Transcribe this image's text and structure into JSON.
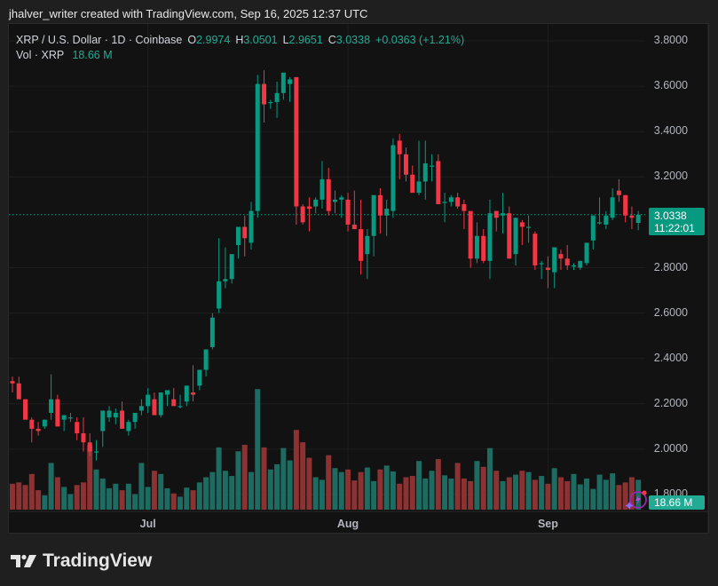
{
  "caption": "jhalver_writer created with TradingView.com, Sep 16, 2025 12:37 UTC",
  "legend": {
    "symbol_line": "XRP / U.S. Dollar · 1D · Coinbase",
    "open_label": "O",
    "open": "2.9974",
    "high_label": "H",
    "high": "3.0501",
    "low_label": "L",
    "low": "2.9651",
    "close_label": "C",
    "close": "3.0338",
    "change": "+0.0363 (+1.21%)",
    "vol_label": "Vol · XRP",
    "vol_value": "18.66 M"
  },
  "price_tag": {
    "price": "3.0338",
    "countdown": "11:22:01"
  },
  "volume_tag": "18.66 M",
  "logo_text": "TradingView",
  "colors": {
    "up": "#089981",
    "down": "#f23645",
    "vol_up": "#1e6b62",
    "vol_down": "#8c3232",
    "background": "#121212",
    "accent": "#22ab94"
  },
  "chart_data": {
    "type": "candlestick",
    "title": "XRP / U.S. Dollar · 1D · Coinbase",
    "xlabel": "",
    "ylabel": "",
    "ylim": [
      1.78,
      3.85
    ],
    "y_ticks": [
      "3.8000",
      "3.6000",
      "3.4000",
      "3.2000",
      "2.8000",
      "2.6000",
      "2.4000",
      "2.2000",
      "2.0000",
      "1.8000"
    ],
    "x_ticks": [
      {
        "label": "Jul",
        "index": 21
      },
      {
        "label": "Aug",
        "index": 52
      },
      {
        "label": "Sep",
        "index": 83
      }
    ],
    "grid": true,
    "last_price": 3.0338,
    "candles": [
      [
        2.3,
        2.32,
        2.25,
        2.29
      ],
      [
        2.29,
        2.32,
        2.23,
        2.22
      ],
      [
        2.22,
        2.22,
        2.15,
        2.13
      ],
      [
        2.13,
        2.14,
        2.03,
        2.09
      ],
      [
        2.09,
        2.12,
        2.06,
        2.08
      ],
      [
        2.1,
        2.13,
        2.09,
        2.13
      ],
      [
        2.16,
        2.33,
        2.13,
        2.22
      ],
      [
        2.22,
        2.24,
        2.16,
        2.1
      ],
      [
        2.13,
        2.15,
        2.08,
        2.15
      ],
      [
        2.14,
        2.16,
        2.12,
        2.14
      ],
      [
        2.12,
        2.14,
        2.04,
        2.07
      ],
      [
        2.07,
        2.14,
        1.99,
        2.03
      ],
      [
        2.03,
        2.07,
        1.97,
        1.99
      ],
      [
        1.99,
        2.04,
        1.95,
        1.99
      ],
      [
        2.08,
        2.12,
        2.01,
        2.17
      ],
      [
        2.14,
        2.19,
        2.12,
        2.17
      ],
      [
        2.14,
        2.18,
        2.11,
        2.16
      ],
      [
        2.17,
        2.21,
        2.15,
        2.09
      ],
      [
        2.08,
        2.13,
        2.06,
        2.12
      ],
      [
        2.12,
        2.15,
        2.09,
        2.16
      ],
      [
        2.17,
        2.22,
        2.15,
        2.19
      ],
      [
        2.19,
        2.27,
        2.16,
        2.24
      ],
      [
        2.22,
        2.25,
        2.15,
        2.15
      ],
      [
        2.15,
        2.2,
        2.14,
        2.25
      ],
      [
        2.24,
        2.26,
        2.19,
        2.26
      ],
      [
        2.22,
        2.27,
        2.2,
        2.19
      ],
      [
        2.19,
        2.24,
        2.18,
        2.19
      ],
      [
        2.21,
        2.27,
        2.19,
        2.28
      ],
      [
        2.25,
        2.37,
        2.21,
        2.24
      ],
      [
        2.28,
        2.33,
        2.26,
        2.35
      ],
      [
        2.35,
        2.43,
        2.32,
        2.44
      ],
      [
        2.45,
        2.6,
        2.44,
        2.58
      ],
      [
        2.62,
        2.93,
        2.6,
        2.74
      ],
      [
        2.74,
        2.89,
        2.71,
        2.75
      ],
      [
        2.75,
        2.82,
        2.73,
        2.86
      ],
      [
        2.9,
        2.94,
        2.84,
        2.98
      ],
      [
        2.98,
        3.03,
        2.85,
        2.93
      ],
      [
        2.91,
        3.09,
        2.88,
        3.05
      ],
      [
        3.05,
        3.65,
        3.02,
        3.61
      ],
      [
        3.61,
        3.67,
        3.44,
        3.52
      ],
      [
        3.53,
        3.54,
        3.5,
        3.53
      ],
      [
        3.53,
        3.62,
        3.46,
        3.57
      ],
      [
        3.57,
        3.65,
        3.54,
        3.66
      ],
      [
        3.61,
        3.64,
        3.53,
        3.63
      ],
      [
        3.64,
        3.64,
        2.99,
        3.07
      ],
      [
        3.07,
        3.08,
        2.99,
        3.0
      ],
      [
        3.07,
        3.11,
        2.96,
        3.06
      ],
      [
        3.07,
        3.11,
        3.04,
        3.1
      ],
      [
        3.1,
        3.27,
        3.06,
        3.19
      ],
      [
        3.19,
        3.24,
        3.03,
        3.05
      ],
      [
        3.09,
        3.14,
        3.04,
        3.1
      ],
      [
        3.1,
        3.12,
        3.02,
        3.11
      ],
      [
        3.1,
        3.13,
        2.96,
        2.99
      ],
      [
        2.99,
        3.14,
        2.97,
        2.97
      ],
      [
        2.97,
        3.1,
        2.77,
        2.83
      ],
      [
        2.86,
        2.97,
        2.75,
        2.94
      ],
      [
        2.94,
        3.03,
        2.85,
        3.12
      ],
      [
        3.12,
        3.15,
        2.95,
        3.03
      ],
      [
        3.03,
        3.1,
        2.94,
        3.06
      ],
      [
        3.05,
        3.37,
        3.02,
        3.34
      ],
      [
        3.36,
        3.39,
        3.19,
        3.3
      ],
      [
        3.3,
        3.33,
        3.18,
        3.21
      ],
      [
        3.21,
        3.25,
        3.15,
        3.13
      ],
      [
        3.13,
        3.36,
        3.12,
        3.18
      ],
      [
        3.18,
        3.36,
        3.1,
        3.26
      ],
      [
        3.25,
        3.3,
        3.18,
        3.25
      ],
      [
        3.27,
        3.3,
        3.08,
        3.08
      ],
      [
        3.09,
        3.13,
        3.0,
        3.09
      ],
      [
        3.09,
        3.12,
        3.07,
        3.11
      ],
      [
        3.11,
        3.13,
        3.06,
        3.07
      ],
      [
        3.08,
        3.1,
        2.97,
        3.05
      ],
      [
        3.05,
        3.04,
        2.8,
        2.84
      ],
      [
        2.84,
        3.0,
        2.82,
        2.94
      ],
      [
        2.94,
        2.97,
        2.82,
        2.83
      ],
      [
        2.83,
        3.1,
        2.75,
        3.04
      ],
      [
        3.05,
        3.05,
        2.96,
        3.02
      ],
      [
        3.03,
        3.13,
        2.95,
        3.04
      ],
      [
        3.04,
        3.07,
        2.88,
        2.84
      ],
      [
        2.86,
        3.02,
        2.81,
        3.02
      ],
      [
        3.0,
        3.01,
        2.9,
        2.98
      ],
      [
        2.98,
        3.03,
        2.91,
        2.98
      ],
      [
        2.95,
        2.96,
        2.79,
        2.81
      ],
      [
        2.82,
        2.83,
        2.75,
        2.82
      ],
      [
        2.8,
        2.85,
        2.71,
        2.79
      ],
      [
        2.78,
        2.87,
        2.71,
        2.89
      ],
      [
        2.86,
        2.88,
        2.79,
        2.84
      ],
      [
        2.84,
        2.9,
        2.79,
        2.81
      ],
      [
        2.81,
        2.82,
        2.79,
        2.81
      ],
      [
        2.8,
        2.83,
        2.79,
        2.83
      ],
      [
        2.82,
        2.9,
        2.81,
        2.91
      ],
      [
        2.92,
        3.02,
        2.88,
        3.03
      ],
      [
        3.0,
        3.11,
        2.99,
        3.0
      ],
      [
        2.99,
        3.05,
        2.97,
        3.03
      ],
      [
        3.02,
        3.15,
        3.01,
        3.11
      ],
      [
        3.14,
        3.19,
        3.09,
        3.12
      ],
      [
        3.12,
        3.12,
        3.0,
        3.03
      ],
      [
        3.03,
        3.07,
        2.97,
        3.02
      ],
      [
        2.9974,
        3.0501,
        2.9651,
        3.0338
      ]
    ],
    "volumes": [
      40,
      42,
      38,
      55,
      30,
      22,
      72,
      50,
      35,
      24,
      38,
      42,
      100,
      62,
      48,
      33,
      40,
      30,
      40,
      24,
      72,
      35,
      60,
      55,
      33,
      25,
      20,
      34,
      30,
      42,
      50,
      58,
      96,
      60,
      52,
      90,
      100,
      58,
      186,
      96,
      62,
      70,
      95,
      76,
      123,
      104,
      80,
      50,
      46,
      84,
      64,
      58,
      62,
      45,
      58,
      65,
      44,
      62,
      68,
      59,
      40,
      50,
      52,
      75,
      48,
      60,
      78,
      53,
      48,
      72,
      48,
      44,
      75,
      66,
      95,
      60,
      44,
      50,
      54,
      60,
      58,
      46,
      52,
      40,
      64,
      50,
      44,
      55,
      39,
      48,
      32,
      54,
      46,
      56,
      38,
      42,
      50,
      46
    ]
  }
}
